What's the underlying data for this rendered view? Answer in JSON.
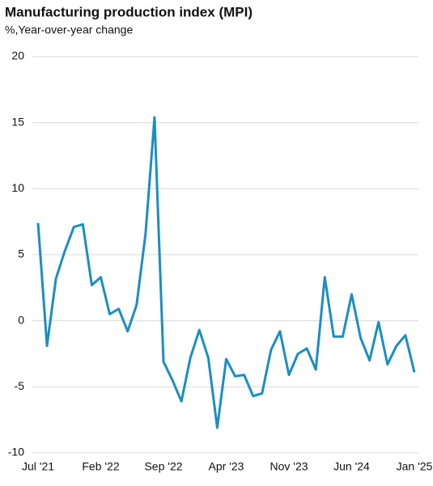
{
  "chart_data": {
    "type": "line",
    "title": "Manufacturing production index (MPI)",
    "subtitle": "%,Year-over-year change",
    "categories": [
      "Jul '21",
      null,
      null,
      null,
      null,
      null,
      null,
      "Feb '22",
      null,
      null,
      null,
      null,
      null,
      null,
      "Sep '22",
      null,
      null,
      null,
      null,
      null,
      null,
      "Apr '23",
      null,
      null,
      null,
      null,
      null,
      null,
      "Nov '23",
      null,
      null,
      null,
      null,
      null,
      null,
      "Jun '24",
      null,
      null,
      null,
      null,
      null,
      null,
      "Jan '25"
    ],
    "series": [
      {
        "name": "MPI",
        "color": "#1b8ec2",
        "values": [
          7.4,
          -1.9,
          3.2,
          5.3,
          7.1,
          7.3,
          2.7,
          3.3,
          0.5,
          0.9,
          -0.8,
          1.2,
          6.6,
          15.4,
          -3.1,
          -4.5,
          -6.1,
          -2.8,
          -0.7,
          -2.8,
          -8.1,
          -2.9,
          -4.2,
          -4.1,
          -5.7,
          -5.5,
          -2.2,
          -0.8,
          -4.1,
          -2.5,
          -2.1,
          -3.7,
          3.3,
          -1.2,
          -1.2,
          2.0,
          -1.3,
          -3.0,
          -0.1,
          -3.3,
          -1.9,
          -1.1,
          -3.9
        ]
      }
    ],
    "ylim": [
      -10,
      20
    ],
    "yticks": [
      -10,
      -5,
      0,
      5,
      10,
      15,
      20
    ],
    "grid": true
  }
}
